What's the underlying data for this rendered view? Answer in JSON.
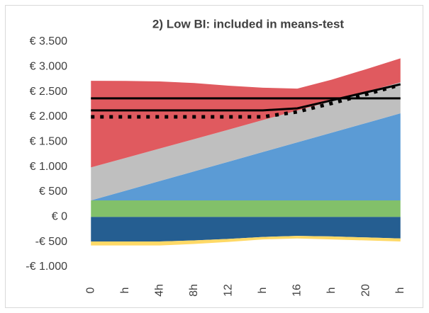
{
  "chart_data": {
    "type": "area",
    "title": "2) Low BI: included in means-test",
    "categories": [
      "0",
      "h",
      "4h",
      "8h",
      "12",
      "h",
      "16",
      "h",
      "20",
      "h"
    ],
    "series": [
      {
        "type": "area",
        "color": "#82c06a",
        "values": [
          330,
          330,
          330,
          330,
          330,
          330,
          330,
          330,
          330,
          330
        ]
      },
      {
        "type": "area",
        "color": "#5b9bd5",
        "values": [
          0,
          193,
          387,
          580,
          773,
          967,
          1160,
          1353,
          1547,
          1740
        ]
      },
      {
        "type": "area",
        "color": "#bfbfbf",
        "values": [
          660,
          655,
          650,
          645,
          640,
          640,
          635,
          630,
          625,
          620
        ]
      },
      {
        "type": "area",
        "color": "#e05a5f",
        "values": [
          1730,
          1540,
          1340,
          1120,
          880,
          645,
          440,
          430,
          450,
          480
        ]
      },
      {
        "type": "area",
        "color": "#255e91",
        "values": [
          -490,
          -490,
          -490,
          -470,
          -440,
          -400,
          -380,
          -390,
          -410,
          -430
        ]
      },
      {
        "type": "area",
        "color": "#ffd966",
        "values": [
          -80,
          -80,
          -80,
          -70,
          -60,
          -50,
          -50,
          -60,
          -60,
          -60
        ]
      },
      {
        "type": "line",
        "color": "#000000",
        "style": "solid",
        "values": [
          2370,
          2370,
          2370,
          2370,
          2370,
          2370,
          2370,
          2370,
          2370,
          2370
        ]
      },
      {
        "type": "line",
        "color": "#000000",
        "style": "solid",
        "values": [
          2130,
          2130,
          2130,
          2130,
          2130,
          2130,
          2170,
          2330,
          2490,
          2650
        ]
      },
      {
        "type": "line",
        "color": "#000000",
        "style": "dotted",
        "values": [
          2000,
          2000,
          2000,
          2000,
          2000,
          2000,
          2100,
          2270,
          2450,
          2640
        ]
      }
    ],
    "ylim": [
      -1000,
      3500
    ],
    "yticks": [
      {
        "value": -1000,
        "label": "-€ 1.000"
      },
      {
        "value": -500,
        "label": "-€ 500"
      },
      {
        "value": 0,
        "label": "€ 0"
      },
      {
        "value": 500,
        "label": "€ 500"
      },
      {
        "value": 1000,
        "label": "€ 1.000"
      },
      {
        "value": 1500,
        "label": "€ 1.500"
      },
      {
        "value": 2000,
        "label": "€ 2.000"
      },
      {
        "value": 2500,
        "label": "€ 2.500"
      },
      {
        "value": 3000,
        "label": "€ 3.000"
      },
      {
        "value": 3500,
        "label": "€ 3.500"
      }
    ],
    "grid": false
  }
}
